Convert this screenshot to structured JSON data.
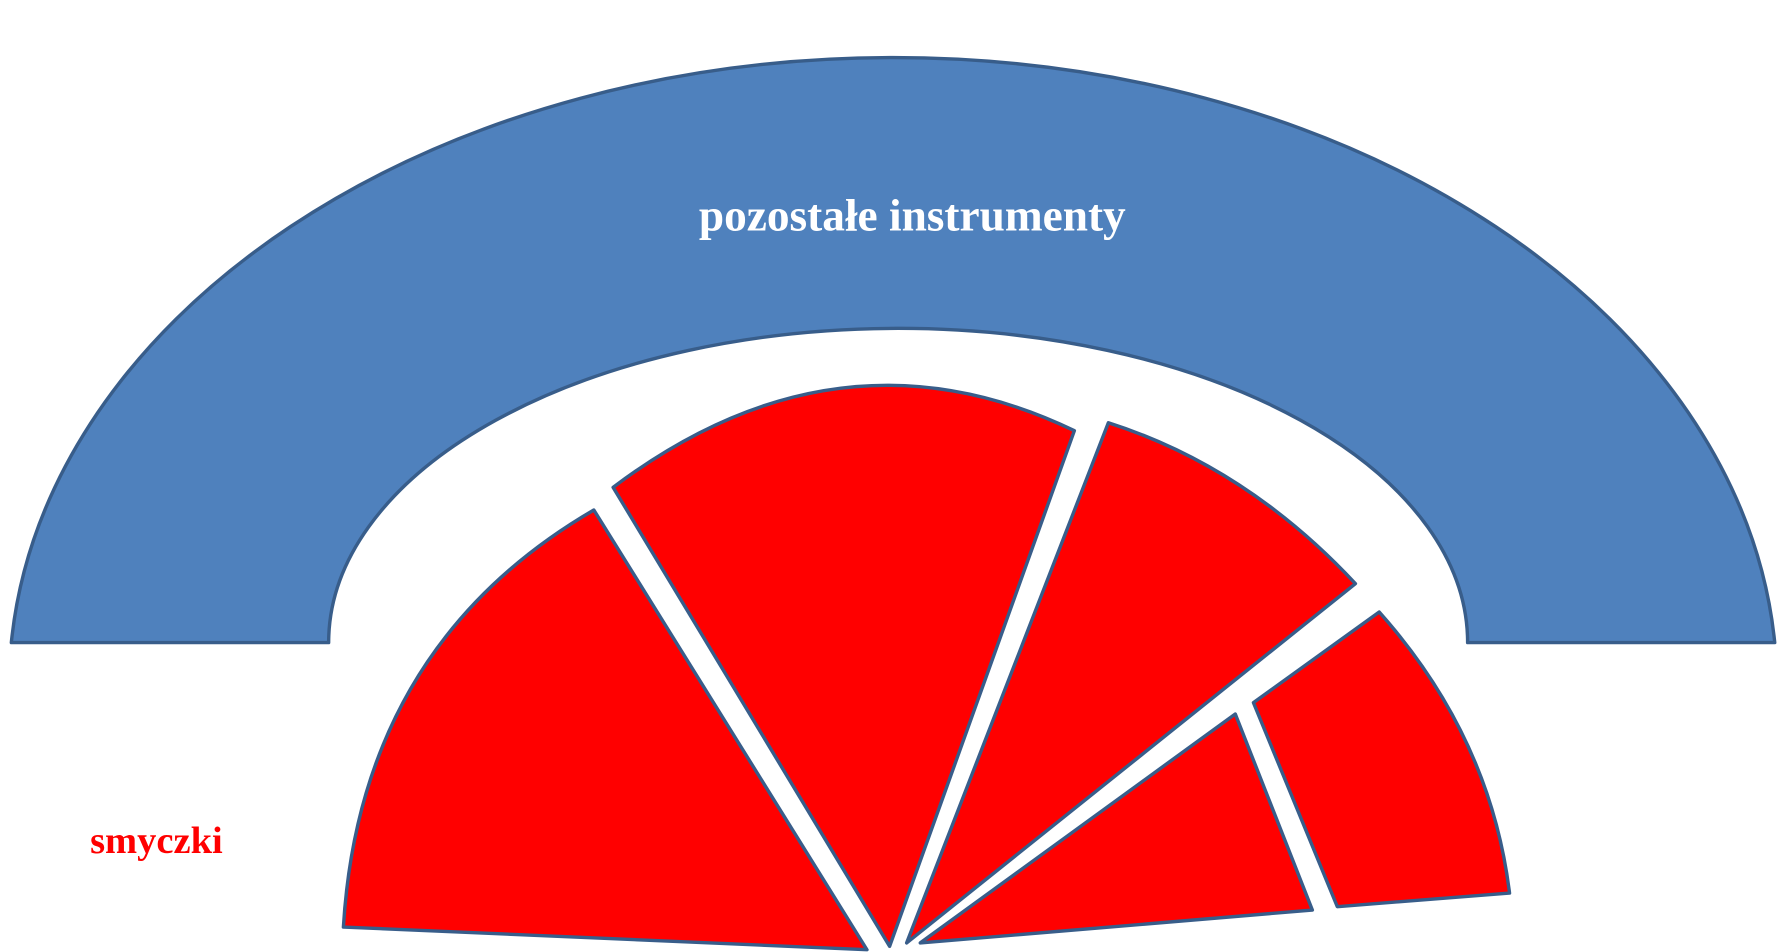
{
  "diagram": {
    "outer_label": "pozostałe instrumenty",
    "inner_label": "smyczki"
  }
}
